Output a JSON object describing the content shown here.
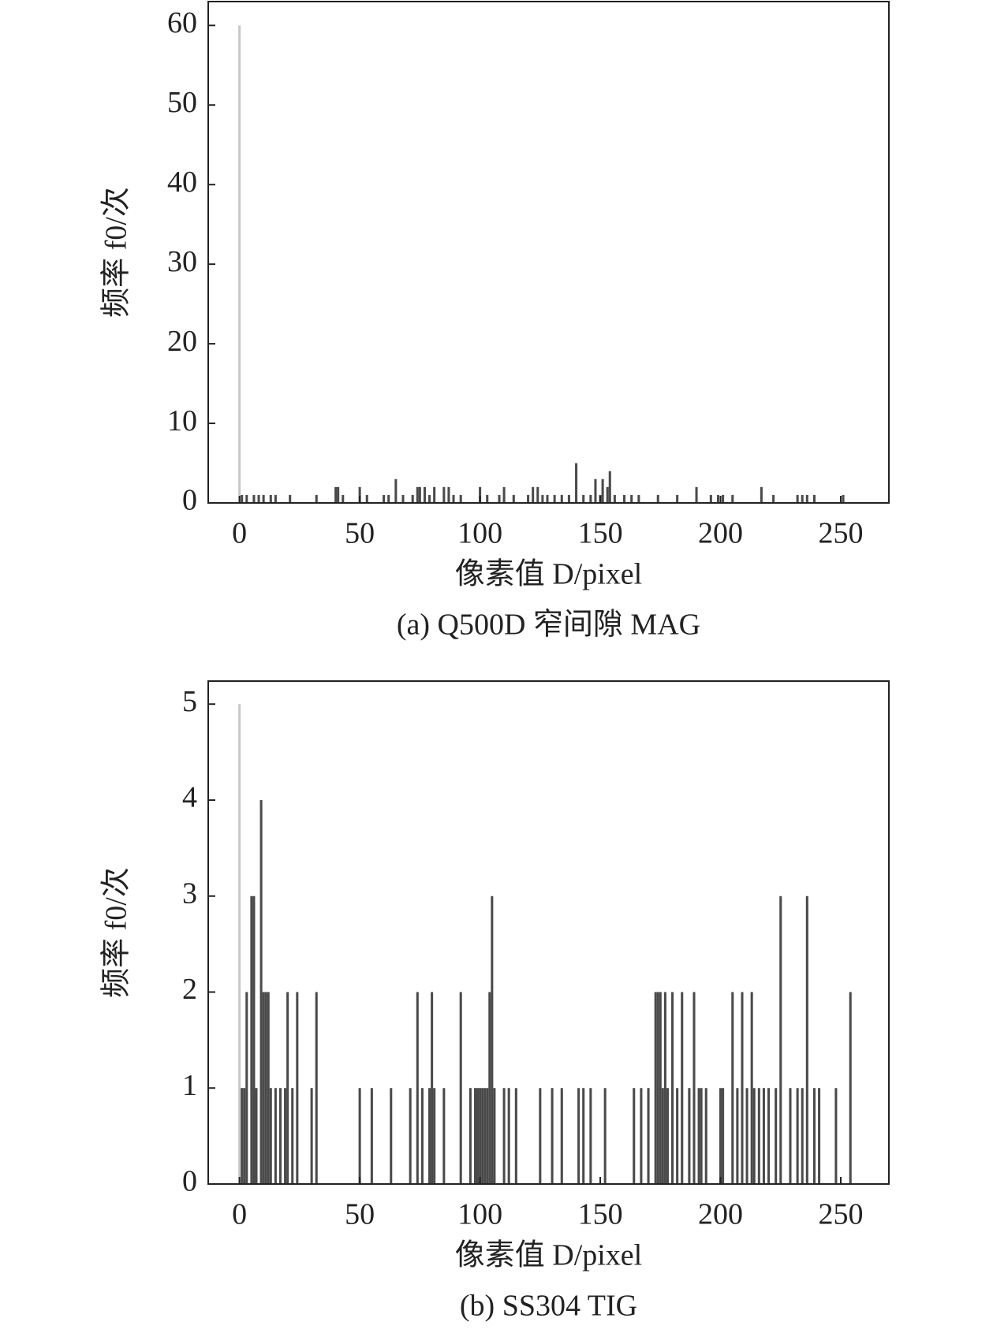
{
  "chart_data": [
    {
      "type": "bar",
      "caption": "(a) Q500D 窄间隙 MAG",
      "x_label": "像素值 D/pixel",
      "y_label": "频率 f0/次",
      "color": "#4a4a4a",
      "x": [
        0,
        1,
        3,
        6,
        8,
        10,
        13,
        15,
        21,
        32,
        40,
        41,
        43,
        50,
        53,
        60,
        62,
        65,
        68,
        72,
        74,
        75,
        77,
        79,
        81,
        85,
        87,
        89,
        92,
        100,
        103,
        108,
        110,
        114,
        120,
        122,
        124,
        126,
        128,
        131,
        134,
        137,
        140,
        143,
        146,
        148,
        150,
        151,
        153,
        154,
        156,
        160,
        163,
        166,
        174,
        182,
        190,
        196,
        199,
        201,
        205,
        217,
        222,
        232,
        234,
        236,
        239,
        251
      ],
      "values": [
        60,
        1,
        1,
        1,
        1,
        1,
        1,
        1,
        1,
        1,
        2,
        2,
        1,
        2,
        1,
        1,
        1,
        3,
        1,
        1,
        2,
        2,
        2,
        1,
        2,
        2,
        2,
        1,
        1,
        2,
        1,
        1,
        2,
        1,
        1,
        2,
        2,
        1,
        1,
        1,
        1,
        1,
        5,
        1,
        1,
        3,
        1,
        3,
        2,
        4,
        1,
        1,
        1,
        1,
        1,
        1,
        2,
        1,
        1,
        1,
        1,
        2,
        1,
        1,
        1,
        1,
        1,
        1
      ],
      "xlim": [
        -13,
        270
      ],
      "xticks": [
        0,
        50,
        100,
        150,
        200,
        250
      ],
      "ylim": [
        0,
        63
      ],
      "yticks": [
        0,
        10,
        20,
        30,
        40,
        50,
        60
      ]
    },
    {
      "type": "bar",
      "caption": "(b) SS304 TIG",
      "x_label": "像素值 D/pixel",
      "y_label": "频率 f0/次",
      "color": "#4a4a4a",
      "x": [
        0,
        1,
        2,
        3,
        5,
        6,
        7,
        9,
        10,
        11,
        12,
        13,
        15,
        17,
        19,
        20,
        22,
        24,
        30,
        32,
        50,
        55,
        63,
        71,
        74,
        76,
        79,
        80,
        81,
        85,
        92,
        96,
        98,
        99,
        100,
        101,
        102,
        103,
        104,
        105,
        106,
        110,
        112,
        115,
        125,
        130,
        134,
        141,
        143,
        146,
        152,
        164,
        167,
        170,
        173,
        174,
        175,
        176,
        177,
        178,
        180,
        182,
        184,
        187,
        189,
        191,
        192,
        194,
        200,
        201,
        205,
        207,
        209,
        211,
        213,
        214,
        216,
        218,
        220,
        223,
        225,
        229,
        232,
        234,
        236,
        239,
        241,
        248,
        254
      ],
      "values": [
        5,
        1,
        1,
        2,
        3,
        3,
        1,
        4,
        2,
        2,
        2,
        1,
        1,
        1,
        1,
        2,
        1,
        2,
        1,
        2,
        1,
        1,
        1,
        1,
        2,
        1,
        1,
        2,
        1,
        1,
        2,
        1,
        1,
        1,
        1,
        1,
        1,
        1,
        2,
        3,
        1,
        1,
        1,
        1,
        1,
        1,
        1,
        1,
        1,
        1,
        1,
        1,
        1,
        1,
        2,
        2,
        2,
        1,
        2,
        1,
        2,
        1,
        2,
        1,
        2,
        1,
        1,
        1,
        1,
        1,
        2,
        1,
        2,
        1,
        2,
        1,
        1,
        1,
        1,
        1,
        3,
        1,
        1,
        1,
        3,
        1,
        1,
        1,
        2
      ],
      "xlim": [
        -13,
        270
      ],
      "xticks": [
        0,
        50,
        100,
        150,
        200,
        250
      ],
      "ylim": [
        0,
        5.24
      ],
      "yticks": [
        0,
        1,
        2,
        3,
        4,
        5
      ]
    }
  ]
}
